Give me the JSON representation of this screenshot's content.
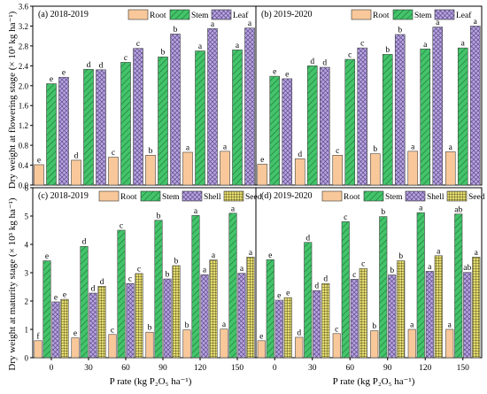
{
  "figure": {
    "ylabel_top": "Dry weight at flowering stage (× 10³ kg ha⁻¹)",
    "ylabel_bottom": "Dry weight at maturity stage (× 10³ kg ha⁻¹)",
    "xlabel": "P rate (kg P₂O₅ ha⁻¹)"
  },
  "colors": {
    "root": "#f9c89a",
    "stem": "#43c46a",
    "leaf": "#b9a5e0",
    "shell": "#b9a5e0",
    "seed": "#e6dc70"
  },
  "chart_data": [
    {
      "type": "bar",
      "panel_label": "(a) 2018-2019",
      "categories": [
        "0",
        "30",
        "60",
        "90",
        "120",
        "150"
      ],
      "ylim": [
        0,
        3.6
      ],
      "yticks": [
        "0.0",
        "0.4",
        "0.8",
        "1.2",
        "1.6",
        "2.0",
        "2.4",
        "2.8",
        "3.2",
        "3.6"
      ],
      "legend": [
        "Root",
        "Stem",
        "Leaf"
      ],
      "series": [
        {
          "name": "Root",
          "values": [
            0.41,
            0.5,
            0.56,
            0.6,
            0.66,
            0.68
          ],
          "letters": [
            "e",
            "d",
            "c",
            "b",
            "a",
            "a"
          ]
        },
        {
          "name": "Stem",
          "values": [
            2.04,
            2.33,
            2.47,
            2.58,
            2.7,
            2.72
          ],
          "letters": [
            "e",
            "d",
            "c",
            "b",
            "a",
            "a"
          ]
        },
        {
          "name": "Leaf",
          "values": [
            2.17,
            2.32,
            2.75,
            3.04,
            3.15,
            3.16
          ],
          "letters": [
            "e",
            "d",
            "c",
            "b",
            "a",
            "a"
          ]
        }
      ]
    },
    {
      "type": "bar",
      "panel_label": "(b) 2019-2020",
      "categories": [
        "0",
        "30",
        "60",
        "90",
        "120",
        "150"
      ],
      "ylim": [
        0,
        3.6
      ],
      "legend": [
        "Root",
        "Stem",
        "Leaf"
      ],
      "series": [
        {
          "name": "Root",
          "values": [
            0.42,
            0.53,
            0.6,
            0.63,
            0.68,
            0.67
          ],
          "letters": [
            "e",
            "d",
            "c",
            "b",
            "a",
            "a"
          ]
        },
        {
          "name": "Stem",
          "values": [
            2.19,
            2.4,
            2.53,
            2.63,
            2.74,
            2.76
          ],
          "letters": [
            "e",
            "d",
            "c",
            "b",
            "a",
            "a"
          ]
        },
        {
          "name": "Leaf",
          "values": [
            2.14,
            2.37,
            2.76,
            3.03,
            3.18,
            3.2
          ],
          "letters": [
            "e",
            "d",
            "c",
            "b",
            "a",
            "a"
          ]
        }
      ]
    },
    {
      "type": "bar",
      "panel_label": "(c) 2018-2019",
      "categories": [
        "0",
        "30",
        "60",
        "90",
        "120",
        "150"
      ],
      "ylim": [
        0,
        6
      ],
      "yticks": [
        "0",
        "1",
        "2",
        "3",
        "4",
        "5",
        "6"
      ],
      "legend": [
        "Root",
        "Stem",
        "Shell",
        "Seed"
      ],
      "series": [
        {
          "name": "Root",
          "values": [
            0.6,
            0.7,
            0.82,
            0.9,
            0.98,
            1.01
          ],
          "letters": [
            "f",
            "e",
            "c",
            "b",
            "b",
            "a"
          ]
        },
        {
          "name": "Stem",
          "values": [
            3.42,
            3.93,
            4.5,
            4.85,
            5.02,
            5.1
          ],
          "letters": [
            "e",
            "d",
            "c",
            "b",
            "a",
            "a"
          ]
        },
        {
          "name": "Shell",
          "values": [
            1.97,
            2.28,
            2.62,
            2.78,
            2.93,
            2.98
          ],
          "letters": [
            "e",
            "d",
            "c",
            "b",
            "a",
            "a"
          ]
        },
        {
          "name": "Seed",
          "values": [
            2.06,
            2.52,
            2.97,
            3.25,
            3.45,
            3.55
          ],
          "letters": [
            "e",
            "d",
            "c",
            "b",
            "a",
            "a"
          ]
        }
      ]
    },
    {
      "type": "bar",
      "panel_label": "(d) 2019-2020",
      "categories": [
        "0",
        "30",
        "60",
        "90",
        "120",
        "150"
      ],
      "ylim": [
        0,
        6
      ],
      "legend": [
        "Root",
        "Stem",
        "Shell",
        "Seed"
      ],
      "series": [
        {
          "name": "Root",
          "values": [
            0.6,
            0.72,
            0.85,
            0.95,
            1.0,
            1.0
          ],
          "letters": [
            "e",
            "d",
            "c",
            "b",
            "a",
            "a"
          ]
        },
        {
          "name": "Stem",
          "values": [
            3.46,
            4.07,
            4.8,
            4.98,
            5.12,
            5.07
          ],
          "letters": [
            "e",
            "d",
            "c",
            "b",
            "a",
            "ab"
          ]
        },
        {
          "name": "Shell",
          "values": [
            2.03,
            2.37,
            2.77,
            2.92,
            3.05,
            3.01
          ],
          "letters": [
            "e",
            "d",
            "c",
            "b",
            "a",
            "ab"
          ]
        },
        {
          "name": "Seed",
          "values": [
            2.12,
            2.62,
            3.15,
            3.42,
            3.6,
            3.55
          ],
          "letters": [
            "e",
            "d",
            "c",
            "b",
            "a",
            "a"
          ]
        }
      ]
    }
  ]
}
